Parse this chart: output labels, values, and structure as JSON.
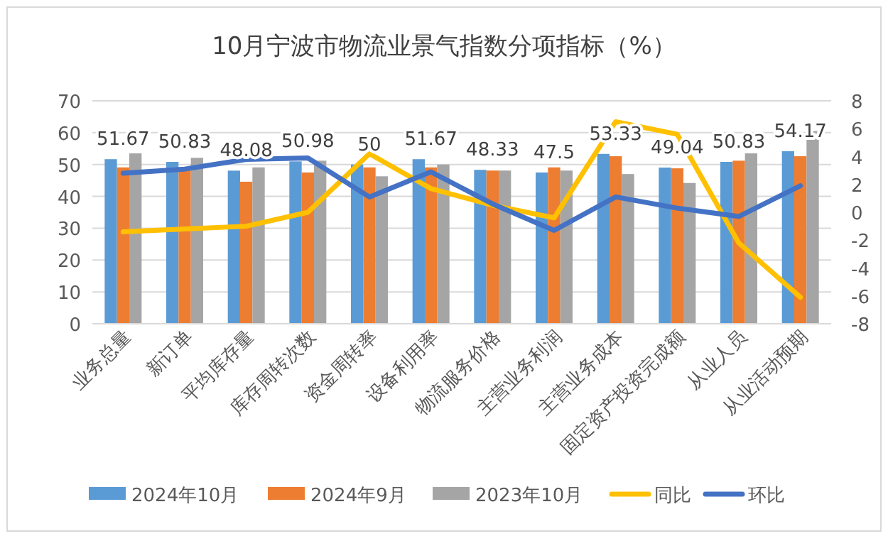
{
  "chart_data": {
    "type": "bar",
    "title": "10月宁波市物流业景气指数分项指标（%）",
    "categories": [
      "业务总量",
      "新订单",
      "平均库存量",
      "库存周转次数",
      "资金周转率",
      "设备利用率",
      "物流服务价格",
      "主营业务利润",
      "主营业务成本",
      "固定资产投资完成额",
      "从业人员",
      "从业活动预期"
    ],
    "series": [
      {
        "name": "2024年10月",
        "color": "#5b9bd5",
        "values": [
          51.67,
          50.83,
          48.08,
          50.98,
          50,
          51.67,
          48.33,
          47.5,
          53.33,
          49.04,
          50.83,
          54.17
        ],
        "value_labels": [
          "51.67",
          "50.83",
          "48.08",
          "50.98",
          "50",
          "51.67",
          "48.33",
          "47.5",
          "53.33",
          "49.04",
          "50.83",
          "54.17"
        ]
      },
      {
        "name": "2024年9月",
        "color": "#ed7d31",
        "values": [
          49.1,
          49.1,
          44.6,
          47.5,
          49.1,
          49.1,
          48.1,
          49.1,
          52.6,
          48.8,
          51.2,
          52.6
        ]
      },
      {
        "name": "2023年10月",
        "color": "#a5a5a5",
        "values": [
          53.5,
          52.1,
          49.1,
          51.2,
          46.3,
          50,
          48.1,
          48.1,
          47,
          44.2,
          53.5,
          60.5
        ]
      },
      {
        "name": "同比",
        "type": "line",
        "axis": "y2",
        "color": "#ffc000",
        "values": [
          -1.4,
          -1.2,
          -1,
          0,
          4.2,
          1.7,
          0.5,
          -0.4,
          6.5,
          5.6,
          -2.2,
          -6.1
        ]
      },
      {
        "name": "环比",
        "type": "line",
        "axis": "y2",
        "color": "#4472c4",
        "values": [
          2.8,
          3.1,
          3.8,
          3.9,
          1.1,
          2.9,
          0.6,
          -1.3,
          1.1,
          0.3,
          -0.3,
          1.9
        ]
      }
    ],
    "ylim": [
      0,
      70
    ],
    "yticks": [
      0,
      10,
      20,
      30,
      40,
      50,
      60,
      70
    ],
    "y2lim": [
      -8,
      8
    ],
    "y2ticks": [
      -8,
      -6,
      -4,
      -2,
      0,
      2,
      4,
      6,
      8
    ],
    "grid": "y",
    "legend": "bottom",
    "marker": "none",
    "line_style": "solid"
  }
}
